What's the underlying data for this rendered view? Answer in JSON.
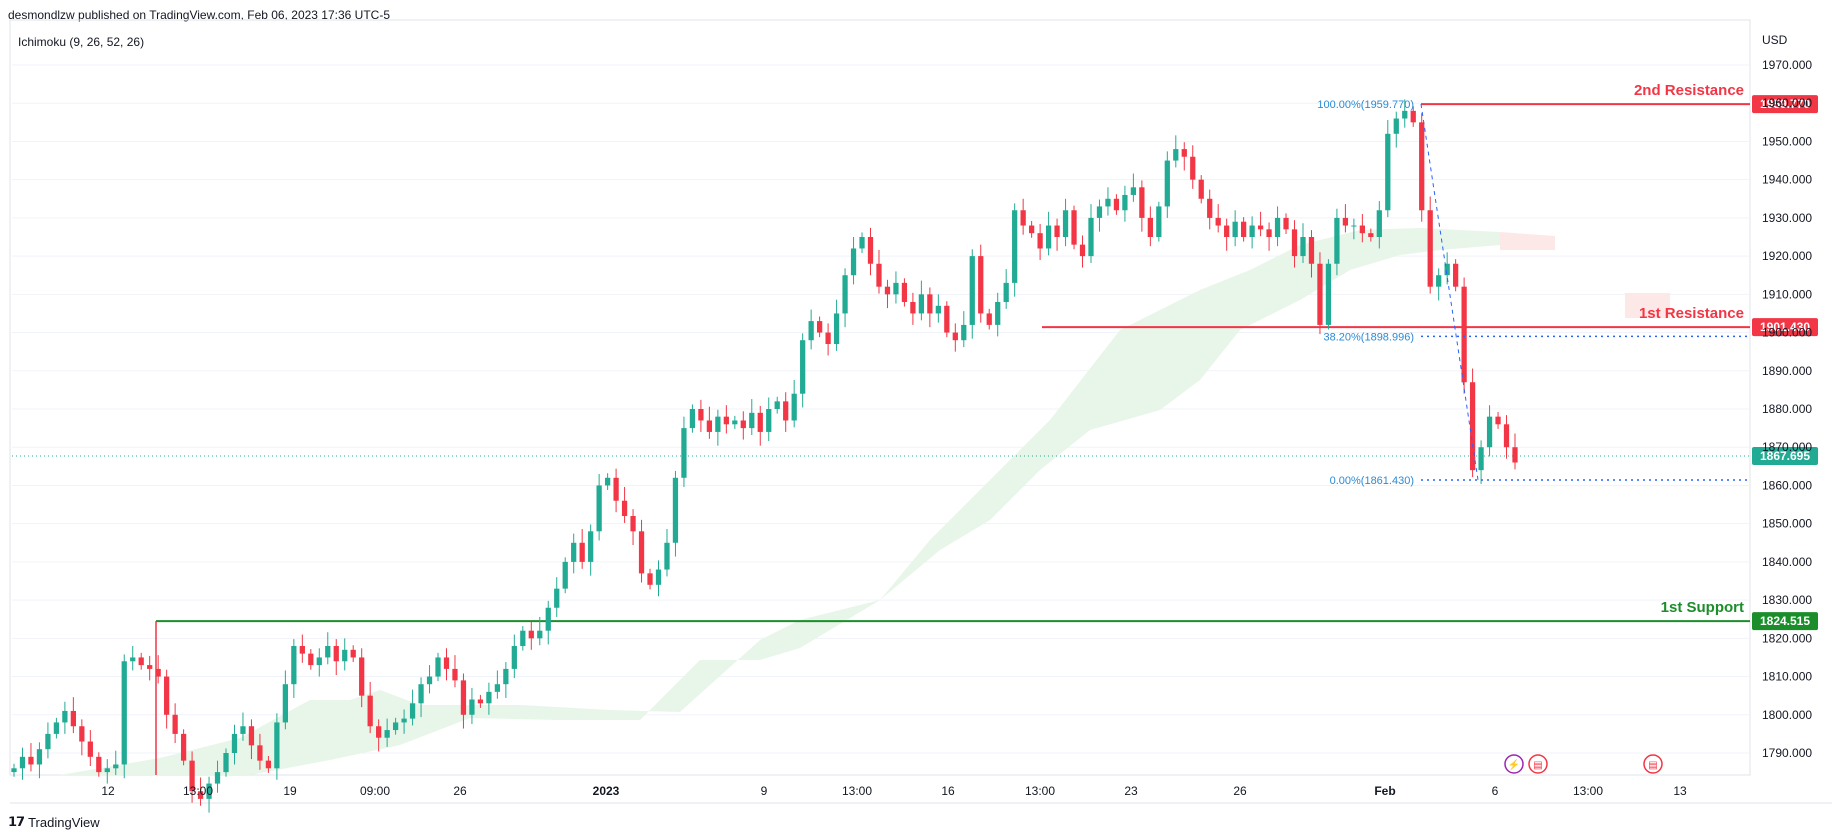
{
  "header": {
    "published_by": "desmondlzw published on TradingView.com, Feb 06, 2023 17:36 UTC-5"
  },
  "indicator": {
    "label": "Ichimoku (9, 26, 52, 26)"
  },
  "footer": {
    "brand": "TradingView"
  },
  "colors": {
    "up": "#22ab94",
    "down": "#f23645",
    "resistance": "#f23645",
    "support": "#1b8e2b",
    "fib": "#2962ff",
    "fib_text": "#2a8bd6",
    "cloud_bull": "#e8f5e9",
    "cloud_bear": "#fde8e8",
    "grid": "#f0f3fa"
  },
  "chart_data": {
    "type": "candlestick",
    "currency": "USD",
    "ylim": [
      1785,
      1977
    ],
    "y_ticks": [
      1790,
      1800,
      1810,
      1820,
      1830,
      1840,
      1850,
      1860,
      1870,
      1880,
      1890,
      1900,
      1910,
      1920,
      1930,
      1940,
      1950,
      1960,
      1970
    ],
    "x_ticks": [
      "12",
      "13:00",
      "19",
      "09:00",
      "26",
      "2023",
      "9",
      "13:00",
      "16",
      "13:00",
      "23",
      "26",
      "Feb",
      "6",
      "13:00",
      "13"
    ],
    "levels": [
      {
        "label": "2nd Resistance",
        "value": 1959.77,
        "price_label": "1959.770",
        "kind": "resistance"
      },
      {
        "label": "1st Resistance",
        "value": 1901.43,
        "price_label": "1901.430",
        "kind": "resistance"
      },
      {
        "label": "1st Support",
        "value": 1824.515,
        "price_label": "1824.515",
        "kind": "support"
      }
    ],
    "last_price": {
      "value": 1867.695,
      "price_label": "1867.695"
    },
    "fibonacci": [
      {
        "label": "100.00%(1959.770)",
        "value": 1959.77
      },
      {
        "label": "38.20%(1898.996)",
        "value": 1898.996
      },
      {
        "label": "0.00%(1861.430)",
        "value": 1861.43
      }
    ],
    "closes": [
      1786,
      1789,
      1787,
      1791,
      1795,
      1798,
      1801,
      1797,
      1793,
      1789,
      1785,
      1786,
      1787,
      1814,
      1815,
      1813,
      1812,
      1810,
      1800,
      1795,
      1788,
      1780,
      1778,
      1782,
      1785,
      1790,
      1795,
      1797,
      1792,
      1788,
      1786,
      1798,
      1808,
      1818,
      1816,
      1813,
      1815,
      1818,
      1814,
      1817,
      1815,
      1805,
      1797,
      1794,
      1796,
      1798,
      1799,
      1803,
      1808,
      1810,
      1815,
      1812,
      1809,
      1800,
      1804,
      1803,
      1806,
      1808,
      1812,
      1818,
      1822,
      1820,
      1822,
      1828,
      1833,
      1840,
      1845,
      1840,
      1848,
      1860,
      1862,
      1856,
      1852,
      1848,
      1837,
      1834,
      1838,
      1845,
      1862,
      1875,
      1880,
      1877,
      1874,
      1878,
      1876,
      1877,
      1875,
      1879,
      1874,
      1880,
      1882,
      1877,
      1884,
      1898,
      1903,
      1900,
      1897,
      1905,
      1915,
      1922,
      1925,
      1918,
      1912,
      1910,
      1913,
      1908,
      1905,
      1910,
      1905,
      1907,
      1900,
      1898,
      1902,
      1920,
      1905,
      1902,
      1908,
      1913,
      1932,
      1928,
      1926,
      1922,
      1928,
      1925,
      1932,
      1923,
      1920,
      1930,
      1933,
      1935,
      1932,
      1936,
      1938,
      1930,
      1925,
      1933,
      1945,
      1948,
      1946,
      1940,
      1935,
      1930,
      1928,
      1925,
      1929,
      1925,
      1928,
      1927,
      1925,
      1930,
      1927,
      1920,
      1925,
      1918,
      1902,
      1918,
      1930,
      1928,
      1928,
      1926,
      1925,
      1932,
      1952,
      1956,
      1958,
      1955,
      1932,
      1912,
      1915,
      1918,
      1912,
      1887,
      1864,
      1870,
      1878,
      1876,
      1870,
      1866
    ]
  }
}
